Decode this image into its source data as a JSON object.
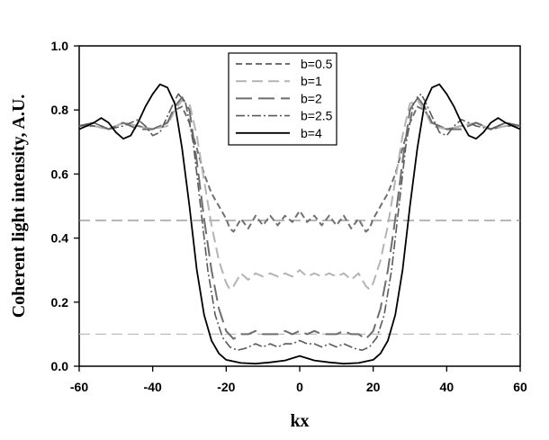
{
  "chart_data": {
    "type": "line",
    "title": "",
    "xlabel": "kx",
    "ylabel": "Coherent light intensity, A.U.",
    "xlim": [
      -60,
      60
    ],
    "ylim": [
      0.0,
      1.0
    ],
    "x_ticks": [
      "-60",
      "-40",
      "-20",
      "0",
      "20",
      "40",
      "60"
    ],
    "y_ticks": [
      "0.0",
      "0.2",
      "0.4",
      "0.6",
      "0.8",
      "1.0"
    ],
    "grid": false,
    "legend_position": "top-center",
    "reference_lines": [
      {
        "y": 0.455,
        "color": "#8c8c8c"
      },
      {
        "y": 0.1,
        "color": "#bdbdbd"
      }
    ],
    "series": [
      {
        "name": "b=0.5",
        "color": "#707070",
        "dash": "7,4",
        "width": 2,
        "points": [
          [
            -60,
            0.75
          ],
          [
            -56,
            0.75
          ],
          [
            -52,
            0.74
          ],
          [
            -48,
            0.76
          ],
          [
            -44,
            0.75
          ],
          [
            -40,
            0.74
          ],
          [
            -36,
            0.76
          ],
          [
            -34,
            0.8
          ],
          [
            -32,
            0.81
          ],
          [
            -30,
            0.76
          ],
          [
            -28,
            0.68
          ],
          [
            -26,
            0.6
          ],
          [
            -24,
            0.54
          ],
          [
            -22,
            0.5
          ],
          [
            -20,
            0.46
          ],
          [
            -19,
            0.43
          ],
          [
            -18,
            0.42
          ],
          [
            -16,
            0.46
          ],
          [
            -14,
            0.43
          ],
          [
            -12,
            0.47
          ],
          [
            -10,
            0.44
          ],
          [
            -8,
            0.47
          ],
          [
            -6,
            0.44
          ],
          [
            -4,
            0.47
          ],
          [
            -2,
            0.45
          ],
          [
            0,
            0.485
          ],
          [
            2,
            0.45
          ],
          [
            4,
            0.47
          ],
          [
            6,
            0.44
          ],
          [
            8,
            0.47
          ],
          [
            10,
            0.44
          ],
          [
            12,
            0.47
          ],
          [
            14,
            0.43
          ],
          [
            16,
            0.46
          ],
          [
            18,
            0.42
          ],
          [
            19,
            0.43
          ],
          [
            20,
            0.46
          ],
          [
            22,
            0.5
          ],
          [
            24,
            0.54
          ],
          [
            26,
            0.6
          ],
          [
            28,
            0.68
          ],
          [
            30,
            0.76
          ],
          [
            32,
            0.81
          ],
          [
            34,
            0.8
          ],
          [
            36,
            0.76
          ],
          [
            40,
            0.74
          ],
          [
            44,
            0.75
          ],
          [
            48,
            0.76
          ],
          [
            52,
            0.74
          ],
          [
            56,
            0.75
          ],
          [
            60,
            0.75
          ]
        ]
      },
      {
        "name": "b=1",
        "color": "#b4b4b4",
        "dash": "12,6",
        "width": 2,
        "points": [
          [
            -60,
            0.75
          ],
          [
            -56,
            0.75
          ],
          [
            -52,
            0.74
          ],
          [
            -48,
            0.76
          ],
          [
            -44,
            0.75
          ],
          [
            -40,
            0.74
          ],
          [
            -36,
            0.75
          ],
          [
            -34,
            0.8
          ],
          [
            -32,
            0.83
          ],
          [
            -30,
            0.82
          ],
          [
            -28,
            0.72
          ],
          [
            -26,
            0.58
          ],
          [
            -24,
            0.44
          ],
          [
            -22,
            0.33
          ],
          [
            -20,
            0.26
          ],
          [
            -19,
            0.24
          ],
          [
            -18,
            0.25
          ],
          [
            -16,
            0.29
          ],
          [
            -14,
            0.27
          ],
          [
            -12,
            0.29
          ],
          [
            -10,
            0.28
          ],
          [
            -8,
            0.29
          ],
          [
            -6,
            0.28
          ],
          [
            -4,
            0.29
          ],
          [
            -2,
            0.28
          ],
          [
            0,
            0.3
          ],
          [
            2,
            0.28
          ],
          [
            4,
            0.29
          ],
          [
            6,
            0.28
          ],
          [
            8,
            0.29
          ],
          [
            10,
            0.28
          ],
          [
            12,
            0.29
          ],
          [
            14,
            0.27
          ],
          [
            16,
            0.29
          ],
          [
            18,
            0.25
          ],
          [
            19,
            0.24
          ],
          [
            20,
            0.26
          ],
          [
            22,
            0.33
          ],
          [
            24,
            0.44
          ],
          [
            26,
            0.58
          ],
          [
            28,
            0.72
          ],
          [
            30,
            0.82
          ],
          [
            32,
            0.83
          ],
          [
            34,
            0.8
          ],
          [
            36,
            0.75
          ],
          [
            40,
            0.74
          ],
          [
            44,
            0.75
          ],
          [
            48,
            0.76
          ],
          [
            52,
            0.74
          ],
          [
            56,
            0.75
          ],
          [
            60,
            0.75
          ]
        ]
      },
      {
        "name": "b=2",
        "color": "#6e6e6e",
        "dash": "18,7",
        "width": 2,
        "points": [
          [
            -60,
            0.75
          ],
          [
            -56,
            0.76
          ],
          [
            -52,
            0.74
          ],
          [
            -48,
            0.76
          ],
          [
            -44,
            0.74
          ],
          [
            -40,
            0.74
          ],
          [
            -36,
            0.76
          ],
          [
            -34,
            0.81
          ],
          [
            -32,
            0.84
          ],
          [
            -30,
            0.8
          ],
          [
            -28,
            0.64
          ],
          [
            -26,
            0.46
          ],
          [
            -24,
            0.3
          ],
          [
            -22,
            0.18
          ],
          [
            -20,
            0.11
          ],
          [
            -18,
            0.085
          ],
          [
            -16,
            0.1
          ],
          [
            -14,
            0.1
          ],
          [
            -12,
            0.11
          ],
          [
            -10,
            0.1
          ],
          [
            -8,
            0.1
          ],
          [
            -6,
            0.1
          ],
          [
            -4,
            0.11
          ],
          [
            -2,
            0.1
          ],
          [
            0,
            0.11
          ],
          [
            2,
            0.1
          ],
          [
            4,
            0.11
          ],
          [
            6,
            0.1
          ],
          [
            8,
            0.1
          ],
          [
            10,
            0.1
          ],
          [
            12,
            0.11
          ],
          [
            14,
            0.1
          ],
          [
            16,
            0.1
          ],
          [
            18,
            0.085
          ],
          [
            20,
            0.11
          ],
          [
            22,
            0.18
          ],
          [
            24,
            0.3
          ],
          [
            26,
            0.46
          ],
          [
            28,
            0.64
          ],
          [
            30,
            0.8
          ],
          [
            32,
            0.84
          ],
          [
            34,
            0.81
          ],
          [
            36,
            0.76
          ],
          [
            40,
            0.74
          ],
          [
            44,
            0.74
          ],
          [
            48,
            0.76
          ],
          [
            52,
            0.74
          ],
          [
            56,
            0.76
          ],
          [
            60,
            0.75
          ]
        ]
      },
      {
        "name": "b=2.5",
        "color": "#5a5a5a",
        "dash": "10,3,2,3",
        "width": 1.6,
        "points": [
          [
            -60,
            0.75
          ],
          [
            -56,
            0.76
          ],
          [
            -52,
            0.74
          ],
          [
            -48,
            0.75
          ],
          [
            -44,
            0.77
          ],
          [
            -42,
            0.75
          ],
          [
            -40,
            0.72
          ],
          [
            -38,
            0.73
          ],
          [
            -36,
            0.78
          ],
          [
            -34,
            0.83
          ],
          [
            -33,
            0.85
          ],
          [
            -31,
            0.82
          ],
          [
            -29,
            0.7
          ],
          [
            -27,
            0.5
          ],
          [
            -25,
            0.3
          ],
          [
            -23,
            0.16
          ],
          [
            -21,
            0.09
          ],
          [
            -19,
            0.06
          ],
          [
            -17,
            0.05
          ],
          [
            -15,
            0.055
          ],
          [
            -12,
            0.07
          ],
          [
            -10,
            0.06
          ],
          [
            -8,
            0.07
          ],
          [
            -6,
            0.06
          ],
          [
            -4,
            0.07
          ],
          [
            -2,
            0.07
          ],
          [
            0,
            0.08
          ],
          [
            2,
            0.07
          ],
          [
            4,
            0.07
          ],
          [
            6,
            0.06
          ],
          [
            8,
            0.07
          ],
          [
            10,
            0.06
          ],
          [
            12,
            0.07
          ],
          [
            15,
            0.055
          ],
          [
            17,
            0.05
          ],
          [
            19,
            0.06
          ],
          [
            21,
            0.09
          ],
          [
            23,
            0.16
          ],
          [
            25,
            0.3
          ],
          [
            27,
            0.5
          ],
          [
            29,
            0.7
          ],
          [
            31,
            0.82
          ],
          [
            33,
            0.85
          ],
          [
            34,
            0.83
          ],
          [
            36,
            0.78
          ],
          [
            38,
            0.73
          ],
          [
            40,
            0.72
          ],
          [
            42,
            0.75
          ],
          [
            44,
            0.77
          ],
          [
            48,
            0.75
          ],
          [
            52,
            0.74
          ],
          [
            56,
            0.76
          ],
          [
            60,
            0.75
          ]
        ]
      },
      {
        "name": "b=4",
        "color": "#000000",
        "dash": "",
        "width": 1.8,
        "points": [
          [
            -60,
            0.74
          ],
          [
            -58,
            0.75
          ],
          [
            -56,
            0.76
          ],
          [
            -54,
            0.775
          ],
          [
            -52,
            0.76
          ],
          [
            -50,
            0.73
          ],
          [
            -48,
            0.71
          ],
          [
            -46,
            0.72
          ],
          [
            -44,
            0.76
          ],
          [
            -42,
            0.81
          ],
          [
            -40,
            0.85
          ],
          [
            -38,
            0.88
          ],
          [
            -36,
            0.87
          ],
          [
            -34,
            0.82
          ],
          [
            -32,
            0.68
          ],
          [
            -30,
            0.5
          ],
          [
            -28,
            0.3
          ],
          [
            -26,
            0.16
          ],
          [
            -24,
            0.08
          ],
          [
            -22,
            0.04
          ],
          [
            -20,
            0.02
          ],
          [
            -16,
            0.01
          ],
          [
            -12,
            0.008
          ],
          [
            -8,
            0.012
          ],
          [
            -4,
            0.018
          ],
          [
            -2,
            0.025
          ],
          [
            0,
            0.032
          ],
          [
            2,
            0.025
          ],
          [
            4,
            0.018
          ],
          [
            8,
            0.012
          ],
          [
            12,
            0.008
          ],
          [
            16,
            0.01
          ],
          [
            20,
            0.02
          ],
          [
            22,
            0.04
          ],
          [
            24,
            0.08
          ],
          [
            26,
            0.16
          ],
          [
            28,
            0.3
          ],
          [
            30,
            0.5
          ],
          [
            32,
            0.68
          ],
          [
            34,
            0.82
          ],
          [
            36,
            0.87
          ],
          [
            38,
            0.88
          ],
          [
            40,
            0.85
          ],
          [
            42,
            0.81
          ],
          [
            44,
            0.76
          ],
          [
            46,
            0.72
          ],
          [
            48,
            0.71
          ],
          [
            50,
            0.73
          ],
          [
            52,
            0.76
          ],
          [
            54,
            0.775
          ],
          [
            56,
            0.76
          ],
          [
            58,
            0.75
          ],
          [
            60,
            0.74
          ]
        ]
      }
    ]
  }
}
